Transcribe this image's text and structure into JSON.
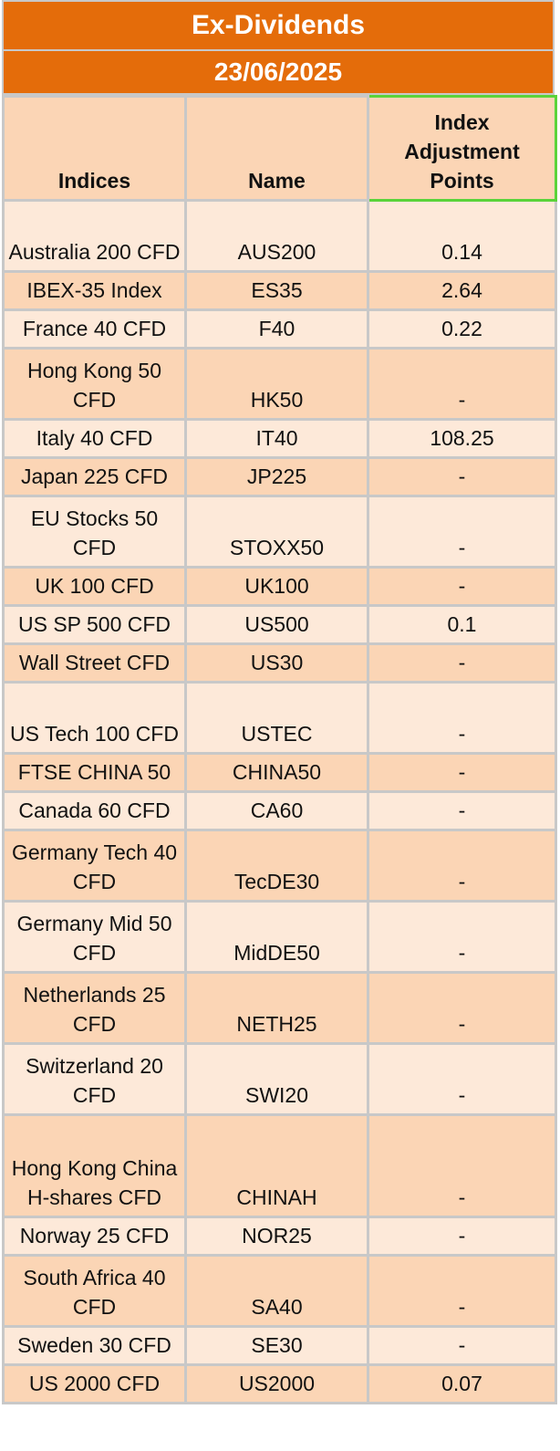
{
  "title": "Ex-Dividends",
  "date": "23/06/2025",
  "headers": {
    "indices": "Indices",
    "name": "Name",
    "adjustment": "Index Adjustment Points"
  },
  "rows": [
    {
      "index": "Australia 200 CFD",
      "name": "AUS200",
      "points": "0.14"
    },
    {
      "index": "IBEX-35 Index",
      "name": "ES35",
      "points": "2.64"
    },
    {
      "index": "France 40 CFD",
      "name": "F40",
      "points": "0.22"
    },
    {
      "index": "Hong Kong 50 CFD",
      "name": "HK50",
      "points": "-"
    },
    {
      "index": "Italy 40 CFD",
      "name": "IT40",
      "points": "108.25"
    },
    {
      "index": "Japan 225 CFD",
      "name": "JP225",
      "points": "-"
    },
    {
      "index": "EU Stocks 50 CFD",
      "name": "STOXX50",
      "points": "-"
    },
    {
      "index": "UK 100 CFD",
      "name": "UK100",
      "points": "-"
    },
    {
      "index": "US SP 500 CFD",
      "name": "US500",
      "points": "0.1"
    },
    {
      "index": "Wall Street CFD",
      "name": "US30",
      "points": "-"
    },
    {
      "index": "US Tech 100 CFD",
      "name": "USTEC",
      "points": "-"
    },
    {
      "index": "FTSE CHINA 50",
      "name": "CHINA50",
      "points": "-"
    },
    {
      "index": "Canada 60 CFD",
      "name": "CA60",
      "points": "-"
    },
    {
      "index": "Germany Tech 40 CFD",
      "name": "TecDE30",
      "points": "-"
    },
    {
      "index": "Germany Mid 50 CFD",
      "name": "MidDE50",
      "points": "-"
    },
    {
      "index": "Netherlands 25 CFD",
      "name": "NETH25",
      "points": "-"
    },
    {
      "index": "Switzerland 20 CFD",
      "name": "SWI20",
      "points": "-"
    },
    {
      "index": "Hong Kong China H-shares CFD",
      "name": "CHINAH",
      "points": "-"
    },
    {
      "index": "Norway 25 CFD",
      "name": "NOR25",
      "points": "-"
    },
    {
      "index": "South Africa 40 CFD",
      "name": "SA40",
      "points": "-"
    },
    {
      "index": "Sweden 30 CFD",
      "name": "SE30",
      "points": "-"
    },
    {
      "index": "US 2000 CFD",
      "name": "US2000",
      "points": "0.07"
    }
  ]
}
